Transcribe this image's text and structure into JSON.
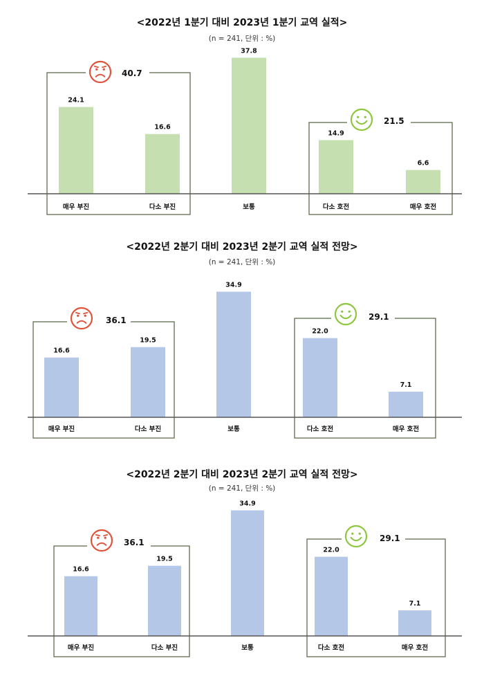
{
  "chart_data": [
    {
      "type": "bar",
      "title": "<2022년 1분기 대비 2023년 1분기 교역 실적>",
      "subtitle": "(n = 241, 단위 : %)",
      "categories": [
        "매우 부진",
        "다소 부진",
        "보통",
        "다소 호전",
        "매우 호전"
      ],
      "values": [
        24.1,
        16.6,
        37.8,
        14.9,
        6.6
      ],
      "value_labels": [
        "24.1",
        "16.6",
        "37.8",
        "14.9",
        "6.6"
      ],
      "bar_color": "#c5dfb0",
      "groups": [
        {
          "label": "40.7",
          "sentiment": "negative",
          "icon": "sad-face-icon",
          "icon_color": "#e0523a"
        },
        {
          "label": "21.5",
          "sentiment": "positive",
          "icon": "smile-face-icon",
          "icon_color": "#8cc63f"
        }
      ]
    },
    {
      "type": "bar",
      "title": "<2022년 2분기 대비 2023년 2분기 교역 실적 전망>",
      "subtitle": "(n = 241, 단위 : %)",
      "categories": [
        "매우 부진",
        "다소 부진",
        "보통",
        "다소 호전",
        "매우 호전"
      ],
      "values": [
        16.6,
        19.5,
        34.9,
        22.0,
        7.1
      ],
      "value_labels": [
        "16.6",
        "19.5",
        "34.9",
        "22.0",
        "7.1"
      ],
      "bar_color": "#b4c7e7",
      "groups": [
        {
          "label": "36.1",
          "sentiment": "negative",
          "icon": "sad-face-icon",
          "icon_color": "#e0523a"
        },
        {
          "label": "29.1",
          "sentiment": "positive",
          "icon": "smile-face-icon",
          "icon_color": "#8cc63f"
        }
      ]
    },
    {
      "type": "bar",
      "title": "<2022년 2분기 대비 2023년 2분기 교역 실적 전망>",
      "subtitle": "(n = 241, 단위 : %)",
      "categories": [
        "매우 부진",
        "다소 부진",
        "보통",
        "다소 호전",
        "매우 호전"
      ],
      "values": [
        16.6,
        19.5,
        34.9,
        22.0,
        7.1
      ],
      "value_labels": [
        "16.6",
        "19.5",
        "34.9",
        "22.0",
        "7.1"
      ],
      "bar_color": "#b4c7e7",
      "groups": [
        {
          "label": "36.1",
          "sentiment": "negative",
          "icon": "sad-face-icon",
          "icon_color": "#e0523a"
        },
        {
          "label": "29.1",
          "sentiment": "positive",
          "icon": "smile-face-icon",
          "icon_color": "#8cc63f"
        }
      ]
    }
  ]
}
